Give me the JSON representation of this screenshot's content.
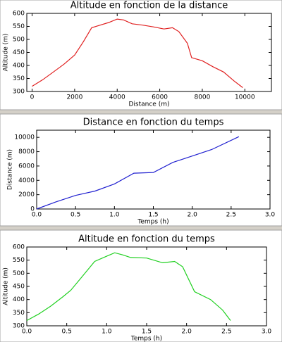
{
  "chart_data": [
    {
      "type": "line",
      "title": "Altitude en fonction de la distance",
      "x_label": "Distance (m)",
      "y_label": "Altitude (m)",
      "x": [
        0,
        500,
        1000,
        1500,
        2000,
        2400,
        2800,
        3200,
        3600,
        4000,
        4300,
        4700,
        5200,
        5700,
        6200,
        6600,
        6900,
        7300,
        7500,
        8000,
        8500,
        9000,
        9500,
        9900
      ],
      "values": [
        320,
        345,
        375,
        405,
        440,
        490,
        545,
        555,
        565,
        578,
        575,
        560,
        555,
        548,
        540,
        545,
        530,
        485,
        430,
        418,
        395,
        375,
        340,
        315
      ],
      "color": "#e02020",
      "xlim": [
        -250,
        11250
      ],
      "ylim": [
        300,
        600
      ],
      "xticks": [
        0,
        2000,
        4000,
        6000,
        8000,
        10000
      ],
      "yticks": [
        300,
        350,
        400,
        450,
        500,
        550,
        600
      ]
    },
    {
      "type": "line",
      "title": "Distance en fonction du temps",
      "x_label": "Temps (h)",
      "y_label": "Distance (m)",
      "x": [
        0,
        0.25,
        0.5,
        0.75,
        1.0,
        1.25,
        1.5,
        1.75,
        2.0,
        2.25,
        2.6
      ],
      "values": [
        0,
        1000,
        1900,
        2500,
        3500,
        5000,
        5100,
        6500,
        7400,
        8300,
        10100
      ],
      "color": "#2020d0",
      "xlim": [
        0,
        3
      ],
      "ylim": [
        0,
        11000
      ],
      "xticks": [
        {
          "value": 0,
          "label": "0.0"
        },
        0.5,
        {
          "value": 1,
          "label": "1.0"
        },
        1.5,
        {
          "value": 2,
          "label": "2.0"
        },
        2.5,
        {
          "value": 3,
          "label": "3.0"
        }
      ],
      "yticks": [
        0,
        2000,
        4000,
        6000,
        8000,
        10000
      ]
    },
    {
      "type": "line",
      "title": "Altitude en fonction du temps",
      "x_label": "Temps (h)",
      "y_label": "Altitude (m)",
      "x": [
        0,
        0.15,
        0.3,
        0.45,
        0.55,
        0.7,
        0.85,
        1.0,
        1.1,
        1.2,
        1.3,
        1.5,
        1.7,
        1.85,
        1.95,
        2.1,
        2.3,
        2.45,
        2.55
      ],
      "values": [
        320,
        345,
        375,
        410,
        435,
        490,
        545,
        565,
        578,
        570,
        560,
        558,
        540,
        545,
        525,
        430,
        400,
        360,
        320
      ],
      "color": "#20d020",
      "xlim": [
        0,
        3
      ],
      "ylim": [
        300,
        600
      ],
      "xticks": [
        {
          "value": 0,
          "label": "0.0"
        },
        0.5,
        {
          "value": 1,
          "label": "1.0"
        },
        1.5,
        {
          "value": 2,
          "label": "2.0"
        },
        2.5,
        {
          "value": 3,
          "label": "3.0"
        }
      ],
      "yticks": [
        300,
        350,
        400,
        450,
        500,
        550,
        600
      ]
    }
  ]
}
